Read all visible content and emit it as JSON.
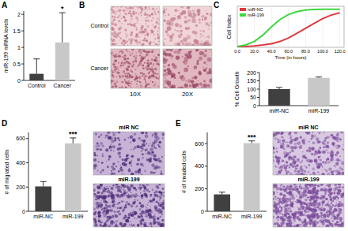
{
  "figure": {
    "panel_labels": [
      "A",
      "B",
      "C",
      "D",
      "E"
    ],
    "micrographs": {
      "B": {
        "rows": [
          "Control",
          "Cancer"
        ],
        "columns": [
          "10X",
          "20X"
        ]
      },
      "D": {
        "labels": [
          "miR NC",
          "miR-199"
        ]
      },
      "E": {
        "labels": [
          "miR NC",
          "miR-199"
        ]
      }
    }
  },
  "chart_data": [
    {
      "type": "bar",
      "y_label": "miR-199 mRNA levels",
      "categories": [
        "Control",
        "Cancer"
      ],
      "values": [
        0.2,
        1.15
      ],
      "errors": [
        0.45,
        0.9
      ],
      "colors": [
        "#404040",
        "#c8c8c8"
      ],
      "ylim": [
        0,
        2.1
      ],
      "yticks": [
        0,
        0.5,
        1,
        1.5,
        2
      ],
      "annotations": [
        {
          "text": "*",
          "index": 1
        }
      ]
    },
    {
      "type": "line",
      "y_label": "Cell Index",
      "x_label": "Time (in hours)",
      "x": [
        0,
        10,
        20,
        30,
        40,
        50,
        60,
        70,
        80,
        90,
        100,
        110,
        120
      ],
      "series": [
        {
          "name": "miR-NC",
          "color": "#e0393e",
          "values": [
            0.02,
            0.03,
            0.05,
            0.08,
            0.12,
            0.2,
            0.32,
            0.48,
            0.65,
            0.82,
            0.98,
            1.1,
            1.18
          ]
        },
        {
          "name": "miR-199",
          "color": "#3ed63e",
          "values": [
            0.03,
            0.08,
            0.2,
            0.42,
            0.7,
            0.95,
            1.12,
            1.22,
            1.27,
            1.29,
            1.3,
            1.3,
            1.3
          ]
        }
      ],
      "xlim": [
        0,
        125
      ],
      "xticks": [
        {
          "value": 0,
          "label": "0.0"
        },
        {
          "value": 20,
          "label": "20.0"
        },
        {
          "value": 40,
          "label": "40.0"
        },
        {
          "value": 60,
          "label": "60.0"
        },
        {
          "value": 80,
          "label": "80.0"
        },
        {
          "value": 100,
          "label": "100.0"
        },
        {
          "value": 120,
          "label": "120.0"
        }
      ],
      "ylim": [
        0,
        1.4
      ],
      "tick_labels": "x",
      "legend": "top-left"
    },
    {
      "type": "bar",
      "y_label": "% Cell Growth",
      "categories": [
        "miR-NC",
        "miR-199"
      ],
      "values": [
        100,
        168
      ],
      "errors": [
        10,
        5
      ],
      "colors": [
        "#404040",
        "#c8c8c8"
      ],
      "ylim": [
        0,
        200
      ],
      "yticks": [
        0,
        50,
        100,
        150,
        200
      ]
    },
    {
      "type": "bar",
      "y_label": "# of migrated cells",
      "categories": [
        "miR-NC",
        "miR-199"
      ],
      "values": [
        205,
        560
      ],
      "errors": [
        40,
        45
      ],
      "colors": [
        "#404040",
        "#c8c8c8"
      ],
      "ylim": [
        0,
        650
      ],
      "yticks": [
        0,
        200,
        400,
        600
      ],
      "annotations": [
        {
          "text": "***",
          "index": 1
        }
      ]
    },
    {
      "type": "bar",
      "y_label": "# of invaded cells",
      "categories": [
        "miR-NC",
        "miR-199"
      ],
      "values": [
        150,
        605
      ],
      "errors": [
        20,
        20
      ],
      "colors": [
        "#404040",
        "#c8c8c8"
      ],
      "ylim": [
        0,
        700
      ],
      "yticks": [
        0,
        200,
        400,
        600
      ],
      "annotations": [
        {
          "text": "***",
          "index": 1
        }
      ]
    }
  ]
}
